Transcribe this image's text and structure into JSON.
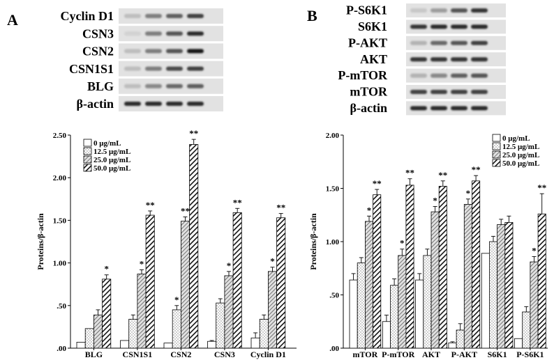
{
  "legend_units": "μg/mL",
  "panels": [
    {
      "letter": "A",
      "blot_labels": [
        "Cyclin D1",
        "CSN3",
        "CSN2",
        "CSN1S1",
        "BLG",
        "β-actin"
      ],
      "blot_intensities": [
        [
          0.15,
          0.45,
          0.6,
          0.75
        ],
        [
          0.05,
          0.45,
          0.65,
          0.85
        ],
        [
          0.15,
          0.45,
          0.65,
          0.95
        ],
        [
          0.15,
          0.45,
          0.7,
          0.75
        ],
        [
          0.15,
          0.4,
          0.55,
          0.6
        ],
        [
          0.85,
          0.85,
          0.85,
          0.85
        ]
      ]
    },
    {
      "letter": "B",
      "blot_labels": [
        "P-S6K1",
        "S6K1",
        "P-AKT",
        "AKT",
        "P-mTOR",
        "mTOR",
        "β-actin"
      ],
      "blot_intensities": [
        [
          0.1,
          0.3,
          0.65,
          0.8
        ],
        [
          0.8,
          0.85,
          0.85,
          0.85
        ],
        [
          0.2,
          0.55,
          0.65,
          0.75
        ],
        [
          0.8,
          0.8,
          0.8,
          0.8
        ],
        [
          0.2,
          0.4,
          0.6,
          0.65
        ],
        [
          0.75,
          0.75,
          0.75,
          0.75
        ],
        [
          0.85,
          0.85,
          0.85,
          0.85
        ]
      ]
    }
  ],
  "chart_data": [
    {
      "type": "bar",
      "panel": "A",
      "ylabel": "Proteins/β-actin",
      "xlabel": "",
      "ylim": [
        0,
        2.5
      ],
      "yticks": [
        0,
        0.5,
        1.0,
        1.5,
        2.0,
        2.5
      ],
      "ytick_labels": [
        ".00",
        ".50",
        "1.00",
        "1.50",
        "2.00",
        "2.50"
      ],
      "categories": [
        "BLG",
        "CSN1S1",
        "CSN2",
        "CSN3",
        "Cyclin D1"
      ],
      "legend_position": "top-left",
      "series": [
        {
          "name": "0   μg/mL",
          "pattern": "white",
          "values": [
            0.07,
            0.09,
            0.06,
            0.08,
            0.12
          ],
          "errors": [
            0.0,
            0.0,
            0.0,
            0.01,
            0.06
          ],
          "sig": [
            "",
            "",
            "",
            "",
            ""
          ]
        },
        {
          "name": "12.5  μg/mL",
          "pattern": "dots",
          "values": [
            0.23,
            0.34,
            0.45,
            0.53,
            0.34
          ],
          "errors": [
            0.0,
            0.05,
            0.05,
            0.05,
            0.05
          ],
          "sig": [
            "",
            "",
            "*",
            "",
            ""
          ]
        },
        {
          "name": "25.0  μg/mL",
          "pattern": "hatch",
          "values": [
            0.39,
            0.87,
            1.49,
            0.85,
            0.9
          ],
          "errors": [
            0.06,
            0.05,
            0.05,
            0.05,
            0.05
          ],
          "sig": [
            "",
            "*",
            "**",
            "*",
            "*"
          ]
        },
        {
          "name": "50.0  μg/mL",
          "pattern": "dense",
          "values": [
            0.81,
            1.56,
            2.39,
            1.59,
            1.53
          ],
          "errors": [
            0.05,
            0.05,
            0.06,
            0.05,
            0.05
          ],
          "sig": [
            "*",
            "**",
            "**",
            "**",
            "**"
          ]
        }
      ]
    },
    {
      "type": "bar",
      "panel": "B",
      "ylabel": "Proteins/β-actin",
      "xlabel": "",
      "ylim": [
        0,
        2.0
      ],
      "yticks": [
        0,
        0.5,
        1.0,
        1.5,
        2.0
      ],
      "ytick_labels": [
        ".00",
        ".50",
        "1.00",
        "1.50",
        "2.00"
      ],
      "categories": [
        "mTOR",
        "P-mTOR",
        "AKT",
        "P-AKT",
        "S6K1",
        "P-S6K1"
      ],
      "legend_position": "top-right",
      "series": [
        {
          "name": "0   μg/mL",
          "pattern": "white",
          "values": [
            0.64,
            0.25,
            0.64,
            0.05,
            0.89,
            0.09
          ],
          "errors": [
            0.06,
            0.06,
            0.06,
            0.01,
            0.0,
            0.0
          ],
          "sig": [
            "",
            "",
            "",
            "",
            "",
            ""
          ]
        },
        {
          "name": "12.5  μg/mL",
          "pattern": "dots",
          "values": [
            0.8,
            0.59,
            0.87,
            0.17,
            1.0,
            0.34
          ],
          "errors": [
            0.05,
            0.06,
            0.06,
            0.06,
            0.05,
            0.05
          ],
          "sig": [
            "",
            "",
            "",
            "",
            "",
            ""
          ]
        },
        {
          "name": "25.0  μg/mL",
          "pattern": "hatch",
          "values": [
            1.19,
            0.87,
            1.28,
            1.35,
            1.16,
            0.81
          ],
          "errors": [
            0.05,
            0.06,
            0.05,
            0.05,
            0.05,
            0.05
          ],
          "sig": [
            "*",
            "*",
            "*",
            "*",
            "",
            "*"
          ]
        },
        {
          "name": "50.0  μg/mL",
          "pattern": "dense",
          "values": [
            1.44,
            1.53,
            1.52,
            1.57,
            1.18,
            1.26
          ],
          "errors": [
            0.05,
            0.06,
            0.05,
            0.05,
            0.06,
            0.19
          ],
          "sig": [
            "**",
            "**",
            "**",
            "**",
            "",
            "**"
          ]
        }
      ]
    }
  ]
}
